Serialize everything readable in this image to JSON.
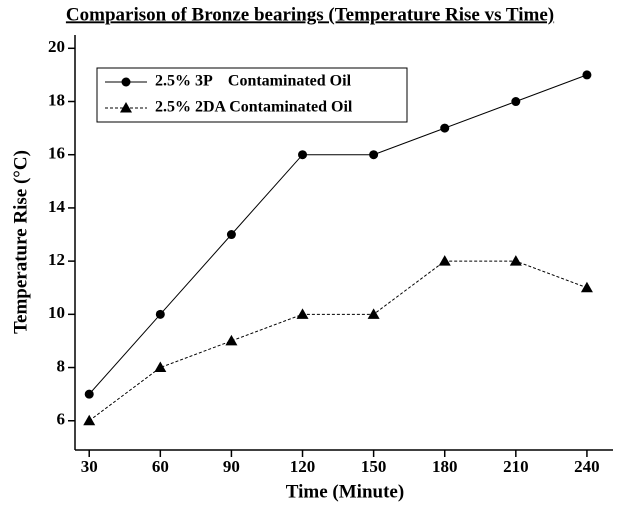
{
  "chart_data": {
    "type": "line",
    "title": "Comparison of Bronze bearings (Temperature Rise vs Time)",
    "x_label": "Time (Minute)",
    "y_label": "Temperature Rise (°C)",
    "x": [
      30,
      60,
      90,
      120,
      150,
      180,
      210,
      240
    ],
    "series": [
      {
        "name": "2.5% 3P    Contaminated Oil",
        "color": "#000000",
        "marker": "circle",
        "line_style": "solid",
        "values": [
          7,
          10,
          13,
          16,
          16,
          17,
          18,
          19
        ]
      },
      {
        "name": "2.5% 2DA Contaminated Oil",
        "color": "#000000",
        "marker": "triangle",
        "line_style": "dashed",
        "values": [
          6,
          8,
          9,
          10,
          10,
          12,
          12,
          11
        ]
      }
    ],
    "xlim": [
      24,
      251
    ],
    "xticks": [
      30,
      60,
      90,
      120,
      150,
      180,
      210,
      240
    ],
    "ylim": [
      4.9,
      20.5
    ],
    "yticks": [
      6,
      8,
      10,
      12,
      14,
      16,
      18,
      20
    ],
    "grid": false,
    "legend": "upper left"
  }
}
